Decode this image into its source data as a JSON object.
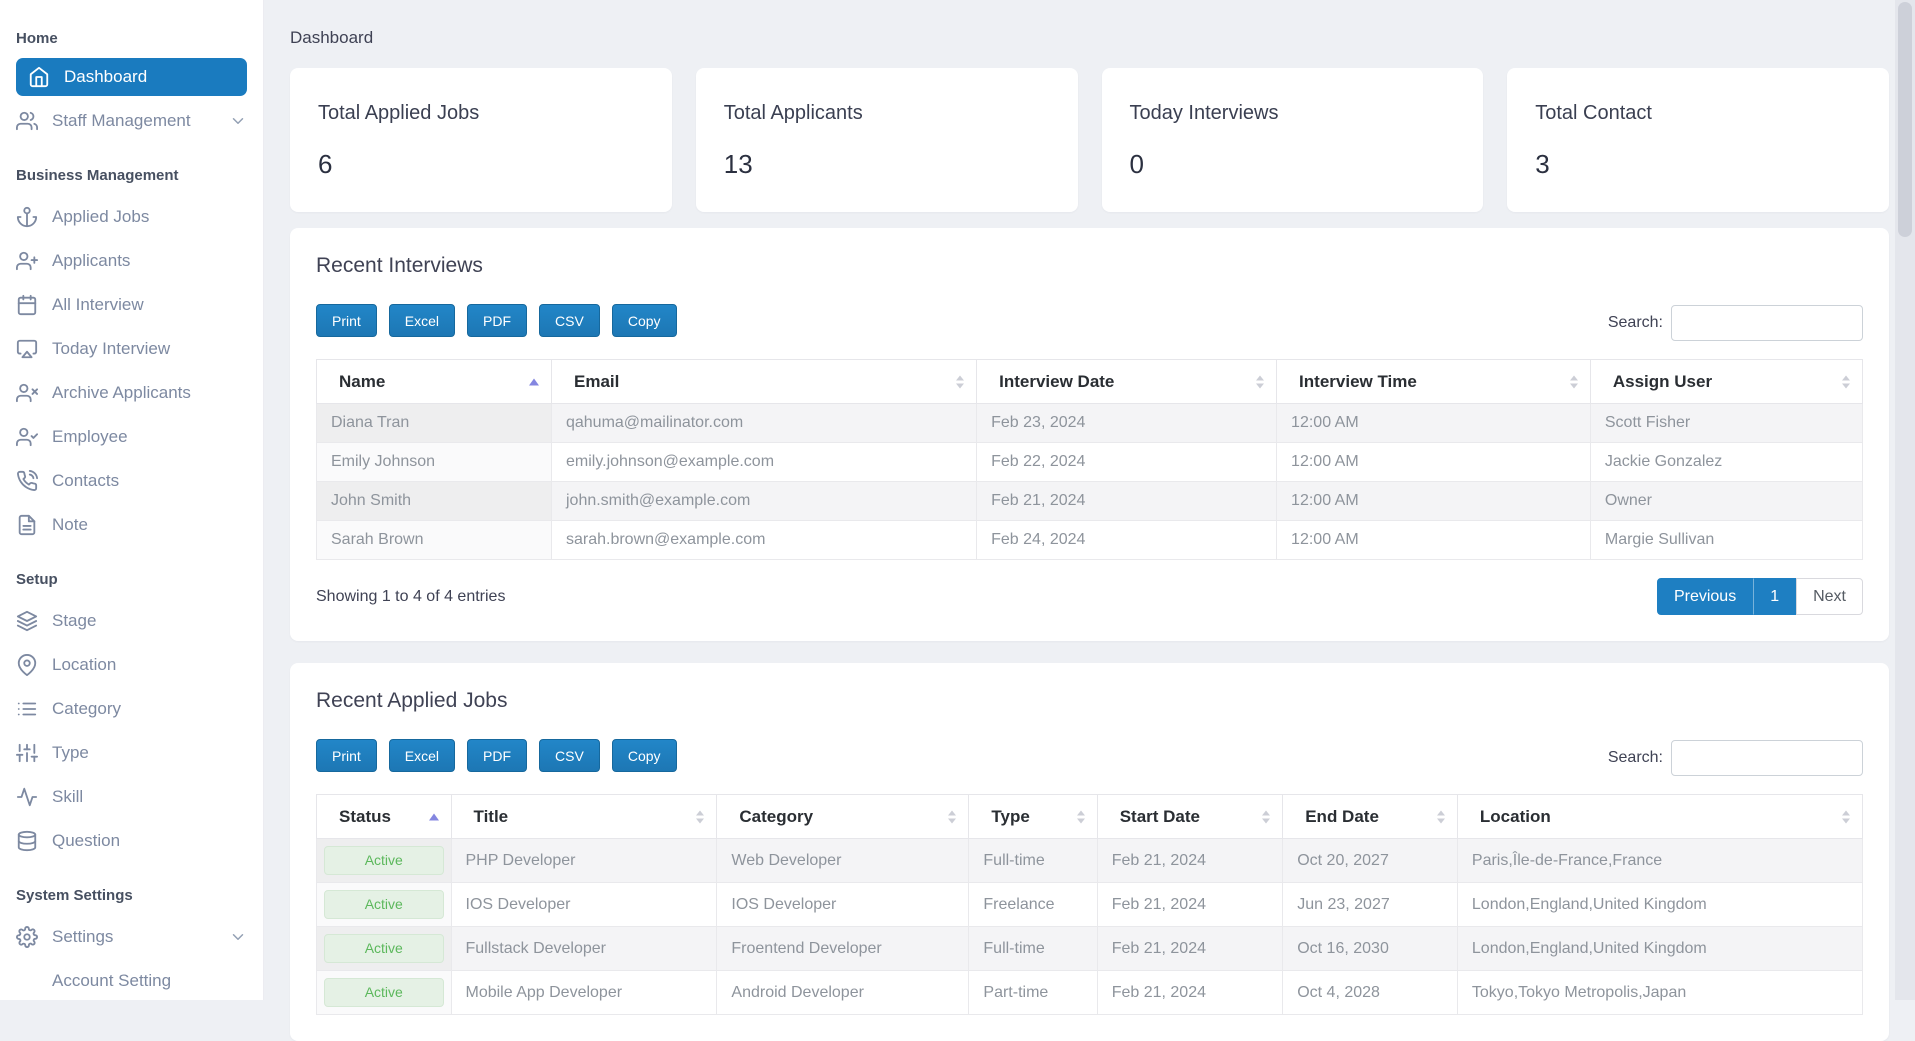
{
  "page": {
    "title": "Dashboard"
  },
  "search_label": "Search:",
  "colors": {
    "accent_blue": "#1e7fc2",
    "active_sidebar_blue": "#1a7bbf",
    "badge_green_bg": "#e5f1e5",
    "badge_green_text": "#5cb85c",
    "sort_arrow_active": "#8486e0",
    "page_background": "#eef0f4"
  },
  "sidebar": {
    "sections": [
      {
        "label": "Home",
        "items": [
          {
            "label": "Dashboard",
            "icon": "home-icon",
            "active": true
          },
          {
            "label": "Staff Management",
            "icon": "users-icon",
            "chevron": true
          }
        ]
      },
      {
        "label": "Business Management",
        "items": [
          {
            "label": "Applied Jobs",
            "icon": "anchor-icon"
          },
          {
            "label": "Applicants",
            "icon": "user-plus-icon"
          },
          {
            "label": "All Interview",
            "icon": "calendar-icon"
          },
          {
            "label": "Today Interview",
            "icon": "airplay-icon"
          },
          {
            "label": "Archive Applicants",
            "icon": "user-x-icon"
          },
          {
            "label": "Employee",
            "icon": "user-check-icon"
          },
          {
            "label": "Contacts",
            "icon": "phone-icon"
          },
          {
            "label": "Note",
            "icon": "file-text-icon"
          }
        ]
      },
      {
        "label": "Setup",
        "items": [
          {
            "label": "Stage",
            "icon": "layers-icon"
          },
          {
            "label": "Location",
            "icon": "map-pin-icon"
          },
          {
            "label": "Category",
            "icon": "list-icon"
          },
          {
            "label": "Type",
            "icon": "sliders-icon"
          },
          {
            "label": "Skill",
            "icon": "activity-icon"
          },
          {
            "label": "Question",
            "icon": "database-icon"
          }
        ]
      },
      {
        "label": "System Settings",
        "items": [
          {
            "label": "Settings",
            "icon": "gear-icon",
            "chevron": true
          },
          {
            "label": "Account Setting",
            "icon": null,
            "indent": true
          }
        ]
      }
    ]
  },
  "stats": [
    {
      "label": "Total Applied Jobs",
      "value": "6"
    },
    {
      "label": "Total Applicants",
      "value": "13"
    },
    {
      "label": "Today Interviews",
      "value": "0"
    },
    {
      "label": "Total Contact",
      "value": "3"
    }
  ],
  "export_buttons": [
    "Print",
    "Excel",
    "PDF",
    "CSV",
    "Copy"
  ],
  "interviews": {
    "title": "Recent Interviews",
    "columns": [
      "Name",
      "Email",
      "Interview Date",
      "Interview Time",
      "Assign User"
    ],
    "column_widths": [
      "15.2%",
      "27.5%",
      "19.4%",
      "20.3%",
      "17.6%"
    ],
    "sorted_column_index": 0,
    "sort_direction": "asc",
    "rows": [
      [
        "Diana Tran",
        "qahuma@mailinator.com",
        "Feb 23, 2024",
        "12:00 AM",
        "Scott Fisher"
      ],
      [
        "Emily Johnson",
        "emily.johnson@example.com",
        "Feb 22, 2024",
        "12:00 AM",
        "Jackie Gonzalez"
      ],
      [
        "John Smith",
        "john.smith@example.com",
        "Feb 21, 2024",
        "12:00 AM",
        "Owner"
      ],
      [
        "Sarah Brown",
        "sarah.brown@example.com",
        "Feb 24, 2024",
        "12:00 AM",
        "Margie Sullivan"
      ]
    ],
    "footer": {
      "showing": "Showing 1 to 4 of 4 entries",
      "previous": "Previous",
      "page": "1",
      "next": "Next"
    }
  },
  "applied_jobs": {
    "title": "Recent Applied Jobs",
    "columns": [
      "Status",
      "Title",
      "Category",
      "Type",
      "Start Date",
      "End Date",
      "Location"
    ],
    "column_widths": [
      "8.7%",
      "17.2%",
      "16.3%",
      "8.3%",
      "12.0%",
      "11.3%",
      "26.2%"
    ],
    "sorted_column_index": 0,
    "sort_direction": "asc",
    "rows": [
      {
        "status": "Active",
        "cells": [
          "PHP Developer",
          "Web Developer",
          "Full-time",
          "Feb 21, 2024",
          "Oct 20, 2027",
          "Paris,Île-de-France,France"
        ]
      },
      {
        "status": "Active",
        "cells": [
          "IOS Developer",
          "IOS Developer",
          "Freelance",
          "Feb 21, 2024",
          "Jun 23, 2027",
          "London,England,United Kingdom"
        ]
      },
      {
        "status": "Active",
        "cells": [
          "Fullstack Developer",
          "Froentend Developer",
          "Full-time",
          "Feb 21, 2024",
          "Oct 16, 2030",
          "London,England,United Kingdom"
        ]
      },
      {
        "status": "Active",
        "cells": [
          "Mobile App Developer",
          "Android Developer",
          "Part-time",
          "Feb 21, 2024",
          "Oct 4, 2028",
          "Tokyo,Tokyo Metropolis,Japan"
        ]
      }
    ]
  }
}
